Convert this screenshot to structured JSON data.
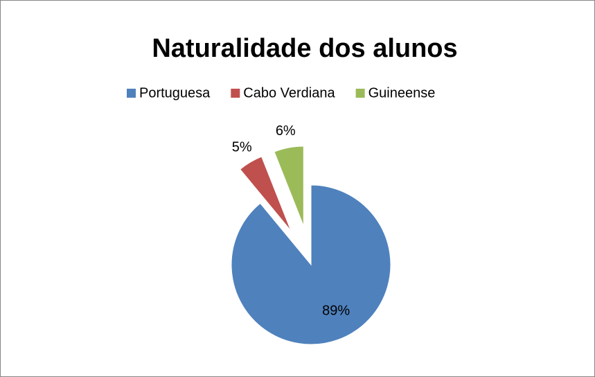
{
  "chart_data": {
    "type": "pie",
    "title": "Naturalidade dos alunos",
    "categories": [
      "Portuguesa",
      "Cabo Verdiana",
      "Guineense"
    ],
    "values": [
      89,
      5,
      6
    ],
    "value_labels": [
      "89%",
      "5%",
      "6%"
    ],
    "colors": [
      "#4f81bd",
      "#c0504d",
      "#9bbb59"
    ],
    "legend": "top"
  }
}
